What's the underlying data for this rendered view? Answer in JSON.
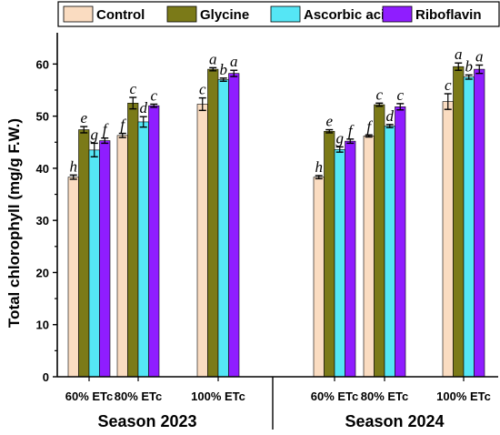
{
  "chart_data": {
    "type": "bar",
    "ylabel": "Total chlorophyll (mg/g F.W.)",
    "ylim": [
      0,
      66
    ],
    "yticks": [
      0,
      10,
      20,
      30,
      40,
      50,
      60
    ],
    "legend_position": "top",
    "series": [
      {
        "name": "Control",
        "color": "#fadcc1"
      },
      {
        "name": "Glycine",
        "color": "#7b7a18"
      },
      {
        "name": "Ascorbic acid",
        "color": "#55e6f5"
      },
      {
        "name": "Riboflavin",
        "color": "#8f1dff"
      }
    ],
    "groups": [
      {
        "label": "Season 2023",
        "categories": [
          {
            "label": "60% ETc",
            "values": [
              38.3,
              47.4,
              43.5,
              45.3
            ],
            "errors": [
              0.4,
              0.6,
              1.3,
              0.5
            ],
            "letters": [
              "h",
              "e",
              "g",
              "f"
            ]
          },
          {
            "label": "80% ETc",
            "values": [
              46.3,
              52.5,
              48.9,
              52.0
            ],
            "errors": [
              0.4,
              1.1,
              1.0,
              0.3
            ],
            "letters": [
              "f",
              "c",
              "d",
              "c"
            ]
          },
          {
            "label": "100% ETc",
            "values": [
              52.3,
              59.0,
              57.0,
              58.2
            ],
            "errors": [
              1.2,
              0.3,
              0.3,
              0.6
            ],
            "letters": [
              "c",
              "a",
              "b",
              "a"
            ]
          }
        ]
      },
      {
        "label": "Season 2024",
        "categories": [
          {
            "label": "60% ETc",
            "values": [
              38.3,
              47.1,
              43.6,
              45.2
            ],
            "errors": [
              0.3,
              0.3,
              0.5,
              0.4
            ],
            "letters": [
              "h",
              "e",
              "g",
              "f"
            ]
          },
          {
            "label": "80% ETc",
            "values": [
              46.2,
              52.2,
              48.1,
              51.8
            ],
            "errors": [
              0.2,
              0.3,
              0.3,
              0.6
            ],
            "letters": [
              "f",
              "c",
              "d",
              "c"
            ]
          },
          {
            "label": "100% ETc",
            "values": [
              52.8,
              59.5,
              57.5,
              59.0
            ],
            "errors": [
              1.5,
              0.7,
              0.4,
              0.8
            ],
            "letters": [
              "c",
              "a",
              "b",
              "a"
            ]
          }
        ]
      }
    ]
  }
}
